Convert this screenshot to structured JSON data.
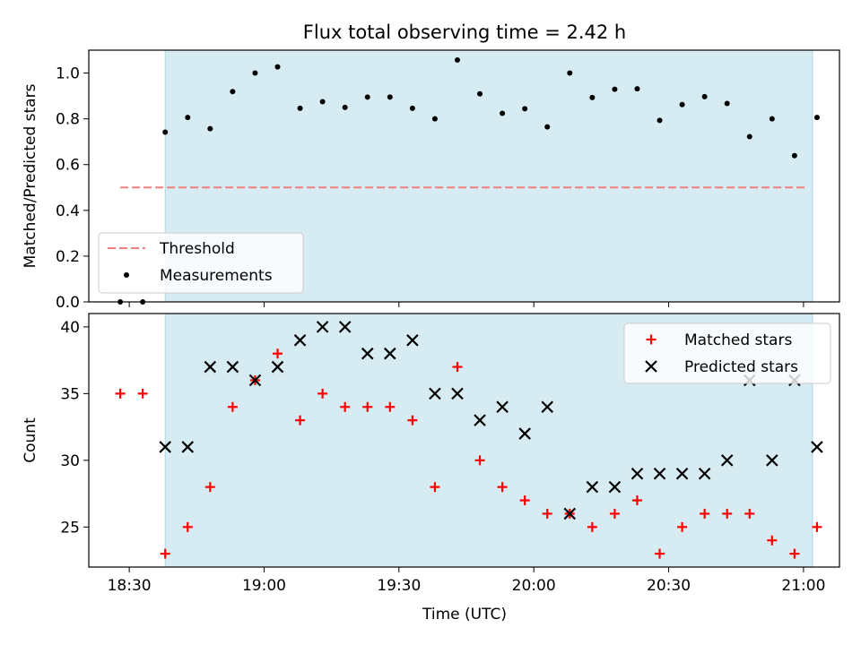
{
  "chart_data": [
    {
      "type": "scatter",
      "title": "Flux total observing time = 2.42 h",
      "ylabel": "Matched/Predicted stars",
      "xlabel": "",
      "xlim": [
        "18:21",
        "21:08"
      ],
      "ylim": [
        0.0,
        1.1
      ],
      "yticks": [
        "0.0",
        "0.2",
        "0.4",
        "0.6",
        "0.8",
        "1.0"
      ],
      "shaded_region": [
        "18:38",
        "21:02"
      ],
      "shade_color": "#add8e6",
      "threshold": {
        "y": 0.5,
        "x_range": [
          "18:28",
          "21:01"
        ],
        "color": "#f08080"
      },
      "legend_position": "lower-left",
      "legend": [
        "Threshold",
        "Measurements"
      ],
      "series": [
        {
          "name": "Measurements",
          "marker": "dot",
          "color": "#000000",
          "x": [
            "18:28",
            "18:33",
            "18:38",
            "18:43",
            "18:48",
            "18:53",
            "18:58",
            "19:03",
            "19:08",
            "19:13",
            "19:18",
            "19:23",
            "19:28",
            "19:33",
            "19:38",
            "19:43",
            "19:48",
            "19:53",
            "19:58",
            "20:03",
            "20:08",
            "20:13",
            "20:18",
            "20:23",
            "20:28",
            "20:33",
            "20:38",
            "20:43",
            "20:48",
            "20:53",
            "20:58",
            "21:03"
          ],
          "y": [
            0.0,
            0.0,
            0.742,
            0.806,
            0.757,
            0.919,
            1.0,
            1.027,
            0.846,
            0.875,
            0.85,
            0.895,
            0.895,
            0.846,
            0.8,
            1.057,
            0.909,
            0.824,
            0.844,
            0.765,
            1.0,
            0.893,
            0.929,
            0.931,
            0.793,
            0.862,
            0.897,
            0.867,
            0.722,
            0.8,
            0.639,
            0.806
          ]
        }
      ]
    },
    {
      "type": "scatter",
      "title": "",
      "ylabel": "Count",
      "xlabel": "Time (UTC)",
      "xlim": [
        "18:21",
        "21:08"
      ],
      "ylim": [
        22.0,
        41.0
      ],
      "yticks": [
        "25",
        "30",
        "35",
        "40"
      ],
      "xticks": [
        "18:30",
        "19:00",
        "19:30",
        "20:00",
        "20:30",
        "21:00"
      ],
      "shaded_region": [
        "18:38",
        "21:02"
      ],
      "shade_color": "#add8e6",
      "legend_position": "upper-right",
      "legend": [
        "Matched stars",
        "Predicted stars"
      ],
      "series": [
        {
          "name": "Matched stars",
          "marker": "plus",
          "color": "#ff0000",
          "x": [
            "18:28",
            "18:33",
            "18:38",
            "18:43",
            "18:48",
            "18:53",
            "18:58",
            "19:03",
            "19:08",
            "19:13",
            "19:18",
            "19:23",
            "19:28",
            "19:33",
            "19:38",
            "19:43",
            "19:48",
            "19:53",
            "19:58",
            "20:03",
            "20:08",
            "20:13",
            "20:18",
            "20:23",
            "20:28",
            "20:33",
            "20:38",
            "20:43",
            "20:48",
            "20:53",
            "20:58",
            "21:03"
          ],
          "y": [
            35,
            35,
            23,
            25,
            28,
            34,
            36,
            38,
            33,
            35,
            34,
            34,
            34,
            33,
            28,
            37,
            30,
            28,
            27,
            26,
            26,
            25,
            26,
            27,
            23,
            25,
            26,
            26,
            26,
            24,
            23,
            25
          ]
        },
        {
          "name": "Predicted stars",
          "marker": "x",
          "color": "#000000",
          "x": [
            "18:38",
            "18:43",
            "18:48",
            "18:53",
            "18:58",
            "19:03",
            "19:08",
            "19:13",
            "19:18",
            "19:23",
            "19:28",
            "19:33",
            "19:38",
            "19:43",
            "19:48",
            "19:53",
            "19:58",
            "20:03",
            "20:08",
            "20:13",
            "20:18",
            "20:23",
            "20:28",
            "20:33",
            "20:38",
            "20:43",
            "20:48",
            "20:53",
            "20:58",
            "21:03"
          ],
          "y": [
            31,
            31,
            37,
            37,
            36,
            37,
            39,
            40,
            40,
            38,
            38,
            39,
            35,
            35,
            33,
            34,
            32,
            34,
            26,
            28,
            28,
            29,
            29,
            29,
            29,
            30,
            36,
            30,
            36,
            31
          ]
        }
      ]
    }
  ]
}
